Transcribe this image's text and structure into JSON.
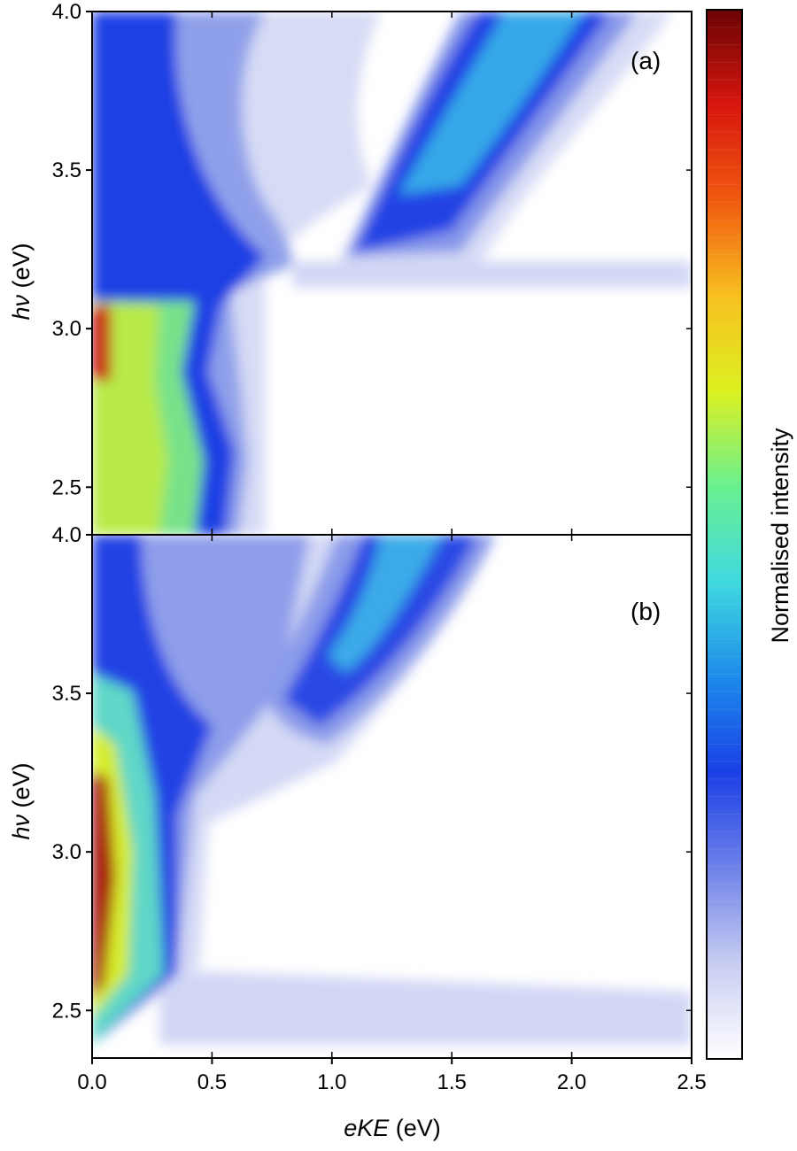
{
  "chart_data": [
    {
      "type": "heatmap",
      "panel_label": "(a)",
      "xlim": [
        0.0,
        2.5
      ],
      "ylim": [
        2.35,
        4.0
      ],
      "ylabel_italic": "hν",
      "ylabel_unit": " (eV)",
      "y_ticks": [
        "2.5",
        "3.0",
        "3.5",
        "4.0"
      ],
      "y_tick_values": [
        2.5,
        3.0,
        3.5,
        4.0
      ],
      "features": [
        {
          "name": "high-intensity band",
          "eKE_max_at_hv": [
            [
              2.4,
              0.45
            ],
            [
              2.5,
              0.5
            ],
            [
              2.8,
              0.45
            ],
            [
              3.0,
              0.3
            ],
            [
              3.05,
              0.15
            ]
          ]
        },
        {
          "name": "dispersive direct-detachment band",
          "path": [
            [
              3.15,
              0.7
            ],
            [
              3.25,
              1.0
            ],
            [
              3.4,
              1.3
            ],
            [
              3.6,
              1.55
            ],
            [
              3.8,
              1.75
            ],
            [
              4.0,
              1.95
            ]
          ]
        },
        {
          "name": "weak horizontal feature",
          "hv": 3.15,
          "eKE_range": [
            0.9,
            2.5
          ]
        }
      ]
    },
    {
      "type": "heatmap",
      "panel_label": "(b)",
      "xlim": [
        0.0,
        2.5
      ],
      "ylim": [
        2.35,
        4.0
      ],
      "xlabel_italic": "eKE",
      "xlabel_unit": " (eV)",
      "ylabel_italic": "hν",
      "ylabel_unit": " (eV)",
      "x_ticks": [
        "0.0",
        "0.5",
        "1.0",
        "1.5",
        "2.0",
        "2.5"
      ],
      "x_tick_values": [
        0.0,
        0.5,
        1.0,
        1.5,
        2.0,
        2.5
      ],
      "y_ticks": [
        "2.5",
        "3.0",
        "3.5",
        "4.0"
      ],
      "y_tick_values": [
        2.5,
        3.0,
        3.5,
        4.0
      ],
      "features": [
        {
          "name": "high-intensity band",
          "eKE_max_at_hv": [
            [
              2.4,
              0.25
            ],
            [
              2.8,
              0.25
            ],
            [
              3.0,
              0.2
            ],
            [
              3.2,
              0.12
            ],
            [
              3.6,
              0.05
            ]
          ]
        },
        {
          "name": "dispersive direct-detachment band",
          "path": [
            [
              3.35,
              0.9
            ],
            [
              3.45,
              1.1
            ],
            [
              3.6,
              1.3
            ],
            [
              3.8,
              1.45
            ],
            [
              4.0,
              1.55
            ]
          ]
        },
        {
          "name": "weak horizontal feature",
          "hv": 2.45,
          "eKE_range": [
            0.2,
            2.5
          ]
        }
      ]
    }
  ],
  "colorbar": {
    "label": "Normalised intensity",
    "colors": [
      "#ffffff",
      "#c8cdf2",
      "#6e82e8",
      "#1b3fe6",
      "#1d8bea",
      "#3fd9e0",
      "#69f08f",
      "#dcf020",
      "#f8c020",
      "#f05a10",
      "#d8160e",
      "#6a0404"
    ]
  }
}
